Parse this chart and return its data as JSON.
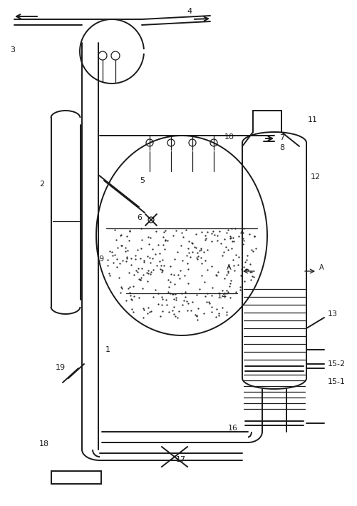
{
  "bg_color": "#ffffff",
  "line_color": "#1a1a1a",
  "lw": 1.4,
  "lw_thin": 0.9,
  "fig_width": 5.02,
  "fig_height": 7.09,
  "dpi": 100
}
